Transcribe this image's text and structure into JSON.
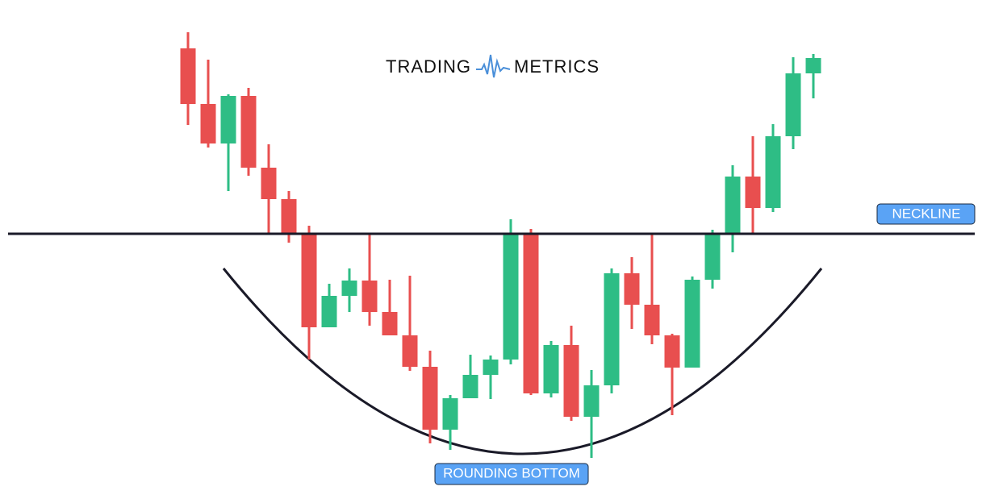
{
  "chart_data": {
    "type": "candlestick",
    "brand": [
      "TRADING",
      "METRICS"
    ],
    "pattern_label": "ROUNDING BOTTOM",
    "neckline": {
      "label": "NECKLINE",
      "value": 329
    },
    "ylim": [
      0,
      619
    ],
    "up_color": "#2ebd85",
    "down_color": "#e84f4f",
    "open": [
      559,
      490,
      441,
      500,
      411,
      372,
      330,
      213,
      252,
      271,
      232,
      203,
      164,
      86,
      125,
      154,
      173,
      330,
      131,
      191,
      102,
      141,
      280,
      241,
      203,
      163,
      272,
      330,
      400,
      361,
      450,
      528
    ],
    "high": [
      579,
      545,
      502,
      510,
      440,
      382,
      339,
      267,
      286,
      329,
      272,
      277,
      184,
      129,
      179,
      178,
      347,
      335,
      196,
      215,
      160,
      286,
      300,
      329,
      205,
      276,
      334,
      414,
      450,
      465,
      548,
      552
    ],
    "low": [
      464,
      436,
      382,
      401,
      329,
      318,
      173,
      213,
      232,
      215,
      203,
      159,
      69,
      61,
      125,
      124,
      167,
      129,
      126,
      97,
      51,
      131,
      211,
      192,
      104,
      163,
      261,
      306,
      330,
      356,
      434,
      497
    ],
    "close": [
      490,
      441,
      500,
      411,
      372,
      330,
      213,
      252,
      271,
      232,
      203,
      164,
      86,
      125,
      154,
      173,
      330,
      131,
      191,
      102,
      141,
      280,
      241,
      203,
      163,
      272,
      330,
      400,
      361,
      450,
      528,
      547
    ]
  }
}
